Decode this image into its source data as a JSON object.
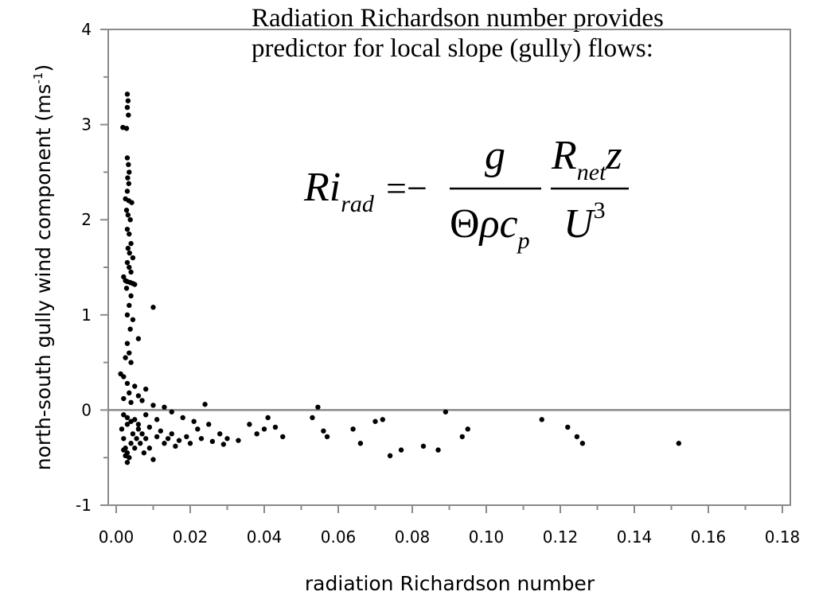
{
  "slide": {
    "title_line1": "Radiation Richardson number provides",
    "title_line2": "predictor for local slope (gully) flows:"
  },
  "equation": {
    "lhs": "Ri",
    "lhs_sub": "rad",
    "equals_minus": "=−",
    "num1": "g",
    "den1_theta": "Θ",
    "den1_rest": "ρc",
    "den1_sub": "p",
    "num2_r": "R",
    "num2_sub": "net",
    "num2_z": "z",
    "den2_u": "U",
    "den2_exp": "3"
  },
  "chart_data": {
    "type": "scatter",
    "title": "",
    "xlabel": "radiation Richardson number",
    "ylabel_main": "north-south gully wind component (ms",
    "ylabel_sup": "-1",
    "ylabel_close": ")",
    "xlim": [
      0.0,
      0.18
    ],
    "ylim": [
      -1,
      4
    ],
    "x_ticks": [
      0.0,
      0.02,
      0.04,
      0.06,
      0.08,
      0.1,
      0.12,
      0.14,
      0.16,
      0.18
    ],
    "x_tick_labels": [
      "0.00",
      "0.02",
      "0.04",
      "0.06",
      "0.08",
      "0.10",
      "0.12",
      "0.14",
      "0.16",
      "0.18"
    ],
    "y_ticks": [
      -1,
      0,
      1,
      2,
      3,
      4
    ],
    "y_tick_labels": [
      "-1",
      "0",
      "1",
      "2",
      "3",
      "4"
    ],
    "reference_line_y": 0,
    "grid": false,
    "marker_color": "#000000",
    "series": [
      {
        "points": [
          [
            0.003,
            3.32
          ],
          [
            0.0032,
            3.25
          ],
          [
            0.003,
            3.18
          ],
          [
            0.0033,
            3.1
          ],
          [
            0.0018,
            2.97
          ],
          [
            0.0028,
            2.96
          ],
          [
            0.003,
            2.65
          ],
          [
            0.0033,
            2.58
          ],
          [
            0.0035,
            2.5
          ],
          [
            0.0031,
            2.44
          ],
          [
            0.0034,
            2.38
          ],
          [
            0.003,
            2.3
          ],
          [
            0.0025,
            2.22
          ],
          [
            0.0034,
            2.2
          ],
          [
            0.0042,
            2.18
          ],
          [
            0.0028,
            2.1
          ],
          [
            0.0032,
            2.05
          ],
          [
            0.0038,
            2.0
          ],
          [
            0.003,
            1.9
          ],
          [
            0.0035,
            1.85
          ],
          [
            0.004,
            1.75
          ],
          [
            0.0032,
            1.7
          ],
          [
            0.0036,
            1.65
          ],
          [
            0.0045,
            1.6
          ],
          [
            0.003,
            1.55
          ],
          [
            0.0035,
            1.5
          ],
          [
            0.004,
            1.45
          ],
          [
            0.002,
            1.4
          ],
          [
            0.0025,
            1.36
          ],
          [
            0.003,
            1.35
          ],
          [
            0.0038,
            1.34
          ],
          [
            0.0045,
            1.33
          ],
          [
            0.005,
            1.32
          ],
          [
            0.0028,
            1.28
          ],
          [
            0.004,
            1.2
          ],
          [
            0.0035,
            1.1
          ],
          [
            0.01,
            1.08
          ],
          [
            0.003,
            1.0
          ],
          [
            0.0045,
            0.95
          ],
          [
            0.0038,
            0.85
          ],
          [
            0.006,
            0.75
          ],
          [
            0.003,
            0.7
          ],
          [
            0.0035,
            0.6
          ],
          [
            0.0025,
            0.55
          ],
          [
            0.004,
            0.5
          ],
          [
            0.0012,
            0.38
          ],
          [
            0.002,
            0.35
          ],
          [
            0.003,
            0.28
          ],
          [
            0.005,
            0.25
          ],
          [
            0.008,
            0.22
          ],
          [
            0.0035,
            0.18
          ],
          [
            0.006,
            0.15
          ],
          [
            0.002,
            0.12
          ],
          [
            0.007,
            0.1
          ],
          [
            0.004,
            0.08
          ],
          [
            0.01,
            0.05
          ],
          [
            0.013,
            0.03
          ],
          [
            0.024,
            0.06
          ],
          [
            0.002,
            -0.05
          ],
          [
            0.003,
            -0.08
          ],
          [
            0.005,
            -0.1
          ],
          [
            0.008,
            -0.05
          ],
          [
            0.011,
            -0.1
          ],
          [
            0.015,
            -0.02
          ],
          [
            0.018,
            -0.08
          ],
          [
            0.021,
            -0.12
          ],
          [
            0.025,
            -0.15
          ],
          [
            0.028,
            -0.25
          ],
          [
            0.03,
            -0.3
          ],
          [
            0.033,
            -0.32
          ],
          [
            0.036,
            -0.15
          ],
          [
            0.038,
            -0.25
          ],
          [
            0.04,
            -0.2
          ],
          [
            0.041,
            -0.08
          ],
          [
            0.043,
            -0.18
          ],
          [
            0.045,
            -0.28
          ],
          [
            0.053,
            -0.08
          ],
          [
            0.0545,
            0.03
          ],
          [
            0.056,
            -0.22
          ],
          [
            0.057,
            -0.28
          ],
          [
            0.064,
            -0.2
          ],
          [
            0.066,
            -0.35
          ],
          [
            0.07,
            -0.12
          ],
          [
            0.072,
            -0.1
          ],
          [
            0.074,
            -0.48
          ],
          [
            0.077,
            -0.42
          ],
          [
            0.083,
            -0.38
          ],
          [
            0.087,
            -0.42
          ],
          [
            0.089,
            -0.02
          ],
          [
            0.0935,
            -0.28
          ],
          [
            0.095,
            -0.2
          ],
          [
            0.115,
            -0.1
          ],
          [
            0.122,
            -0.18
          ],
          [
            0.1245,
            -0.28
          ],
          [
            0.126,
            -0.35
          ],
          [
            0.152,
            -0.35
          ],
          [
            0.0015,
            -0.2
          ],
          [
            0.002,
            -0.3
          ],
          [
            0.0025,
            -0.4
          ],
          [
            0.003,
            -0.45
          ],
          [
            0.0035,
            -0.5
          ],
          [
            0.004,
            -0.35
          ],
          [
            0.0045,
            -0.25
          ],
          [
            0.005,
            -0.4
          ],
          [
            0.0055,
            -0.3
          ],
          [
            0.006,
            -0.2
          ],
          [
            0.0065,
            -0.35
          ],
          [
            0.007,
            -0.25
          ],
          [
            0.0075,
            -0.45
          ],
          [
            0.008,
            -0.3
          ],
          [
            0.009,
            -0.4
          ],
          [
            0.01,
            -0.52
          ],
          [
            0.011,
            -0.28
          ],
          [
            0.012,
            -0.22
          ],
          [
            0.013,
            -0.35
          ],
          [
            0.014,
            -0.3
          ],
          [
            0.015,
            -0.25
          ],
          [
            0.016,
            -0.38
          ],
          [
            0.017,
            -0.32
          ],
          [
            0.019,
            -0.28
          ],
          [
            0.02,
            -0.35
          ],
          [
            0.022,
            -0.2
          ],
          [
            0.023,
            -0.3
          ],
          [
            0.026,
            -0.33
          ],
          [
            0.029,
            -0.36
          ],
          [
            0.003,
            -0.55
          ],
          [
            0.0025,
            -0.48
          ],
          [
            0.002,
            -0.42
          ],
          [
            0.003,
            -0.15
          ],
          [
            0.004,
            -0.12
          ],
          [
            0.006,
            -0.15
          ],
          [
            0.009,
            -0.18
          ]
        ]
      }
    ]
  }
}
